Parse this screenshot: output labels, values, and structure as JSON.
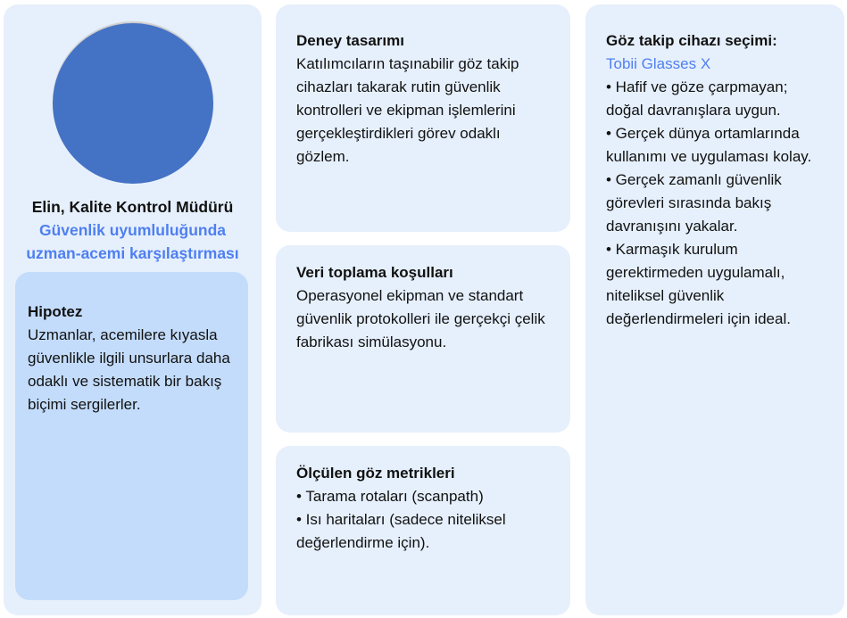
{
  "persona": {
    "name": "Elin, Kalite Kontrol Müdürü",
    "subtitle_1": "Güvenlik uyumluluğunda",
    "subtitle_2": "uzman-acemi karşılaştırması",
    "avatar_color": "#4472c4"
  },
  "hypothesis": {
    "title": "Hipotez",
    "body": "Uzmanlar, acemilere kıyasla güvenlikle ilgili unsurlara daha odaklı ve sistematik bir bakış biçimi sergilerler."
  },
  "design": {
    "title": "Deney tasarımı",
    "body": "Katılımcıların taşınabilir göz takip cihazları takarak rutin güvenlik kontrolleri ve ekipman işlemlerini gerçekleştirdikleri görev odaklı gözlem."
  },
  "conditions": {
    "title": "Veri toplama koşulları",
    "body": "Operasyonel ekipman ve standart güvenlik protokolleri ile gerçekçi çelik fabrikası simülasyonu."
  },
  "metrics": {
    "title": "Ölçülen göz metrikleri",
    "items": [
      "• Tarama rotaları (scanpath)",
      "• Isı haritaları (sadece niteliksel değerlendirme için)."
    ]
  },
  "device": {
    "title": "Göz takip cihazı seçimi:",
    "name": "Tobii Glasses X",
    "items": [
      "• Hafif ve göze çarpmayan; doğal davranışlara uygun.",
      "• Gerçek dünya ortamlarında kullanımı ve uygulaması kolay.",
      "• Gerçek zamanlı güvenlik görevleri sırasında bakış davranışını yakalar.",
      "• Karmaşık kurulum gerektirmeden uygulamalı, niteliksel güvenlik değerlendirmeleri için ideal."
    ]
  },
  "colors": {
    "card": "#e6f0fc",
    "hypothesis_card": "#c3dcfb",
    "accent": "#4f7ff0"
  }
}
